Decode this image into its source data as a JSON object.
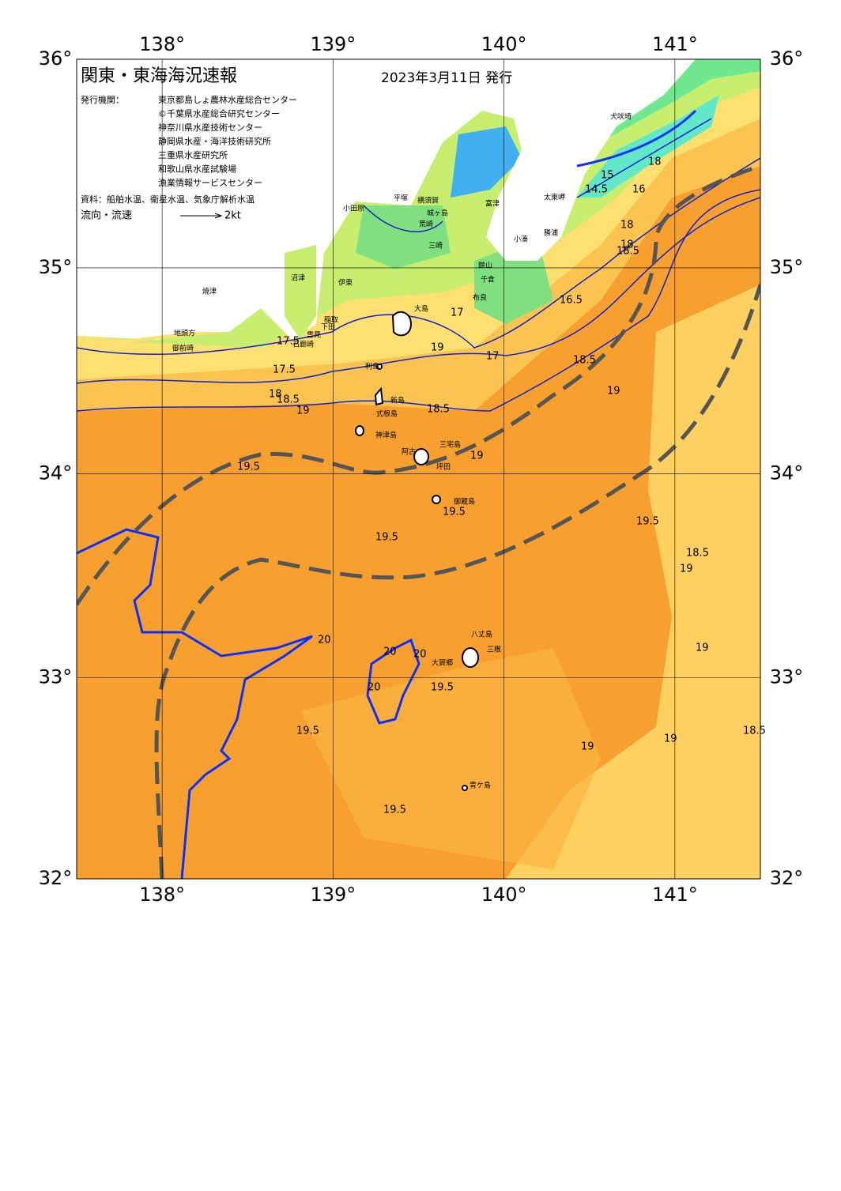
{
  "header": {
    "title": "関東・東海海況速報",
    "date": "2023年3月11日 発行"
  },
  "issuers": {
    "label": "発行機関：",
    "names": [
      "東京都島しょ農林水産総合センター",
      "©千葉県水産総合研究センター",
      "神奈川県水産技術センター",
      "静岡県水産・海洋技術研究所",
      "三重県水産研究所",
      "和歌山県水産試験場",
      "漁業情報サービスセンター"
    ]
  },
  "source": "資料：船舶水温、衛星水温、気象庁解析水温",
  "legend": {
    "label": "流向・流速",
    "speed": "2kt"
  },
  "map": {
    "lon_range": [
      137.5,
      141.5
    ],
    "lat_range": [
      32,
      36
    ],
    "lon_ticks": [
      {
        "value": 138,
        "label": "138°"
      },
      {
        "value": 139,
        "label": "139°"
      },
      {
        "value": 140,
        "label": "140°"
      },
      {
        "value": 141,
        "label": "141°"
      }
    ],
    "lat_ticks": [
      {
        "value": 32,
        "label": "32°"
      },
      {
        "value": 33,
        "label": "33°"
      },
      {
        "value": 34,
        "label": "34°"
      },
      {
        "value": 35,
        "label": "35°"
      },
      {
        "value": 36,
        "label": "36°"
      }
    ]
  },
  "places": [
    "犬吠埼",
    "太東岬",
    "小湊",
    "勝浦",
    "館山",
    "千倉",
    "布良",
    "富津",
    "横須賀",
    "城ヶ島",
    "荒崎",
    "三崎",
    "平塚",
    "小田原",
    "沼津",
    "伊東",
    "稲取",
    "下田",
    "雲見",
    "石廊崎",
    "焼津",
    "御前崎",
    "地頭方",
    "大島",
    "利島",
    "新島",
    "式根島",
    "神津島",
    "三宅島",
    "阿古",
    "坪田",
    "御蔵島",
    "八丈島",
    "三根",
    "大賀郷",
    "青ケ島"
  ],
  "contour_labels": [
    "14.5",
    "15",
    "16",
    "18",
    "17",
    "17",
    "17.5",
    "18",
    "18.5",
    "17.5",
    "18",
    "18.5",
    "19",
    "18.5",
    "19",
    "19.5",
    "19.5",
    "19.5",
    "19",
    "18.5",
    "19",
    "19.5",
    "20",
    "20",
    "20",
    "20",
    "19.5",
    "19.5",
    "19.5",
    "19",
    "19",
    "19",
    "18.5",
    "16.5",
    "18",
    "18.5",
    "19"
  ]
}
